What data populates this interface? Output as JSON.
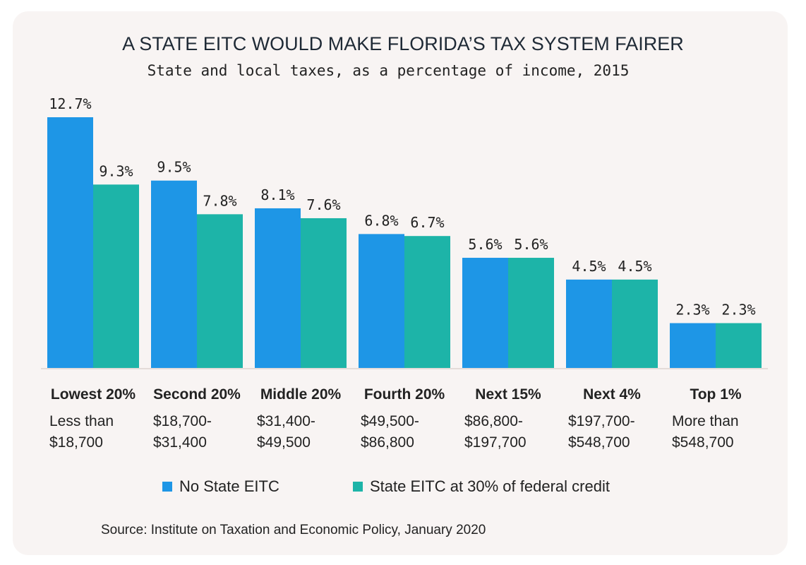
{
  "header": {
    "title": "A STATE EITC WOULD MAKE FLORIDA’S TAX SYSTEM FAIRER",
    "subtitle": "State and local taxes, as a percentage of income, 2015"
  },
  "source": "Source: Institute on Taxation and Economic Policy, January 2020",
  "chart_data": {
    "type": "bar",
    "title": "A STATE EITC WOULD MAKE FLORIDA’S TAX SYSTEM FAIRER",
    "subtitle": "State and local taxes, as a percentage of income, 2015",
    "categories": [
      "Lowest 20%",
      "Second 20%",
      "Middle 20%",
      "Fourth 20%",
      "Next 15%",
      "Next 4%",
      "Top 1%"
    ],
    "income_ranges": [
      [
        "Less than",
        "$18,700"
      ],
      [
        "$18,700-",
        "$31,400"
      ],
      [
        "$31,400-",
        "$49,500"
      ],
      [
        "$49,500-",
        "$86,800"
      ],
      [
        "$86,800-",
        "$197,700"
      ],
      [
        "$197,700-",
        "$548,700"
      ],
      [
        "More than",
        "$548,700"
      ]
    ],
    "series": [
      {
        "name": "No State EITC",
        "color": "#1e96e6",
        "values": [
          12.7,
          9.5,
          8.1,
          6.8,
          5.6,
          4.5,
          2.3
        ],
        "labels": [
          "12.7%",
          "9.5%",
          "8.1%",
          "6.8%",
          "5.6%",
          "4.5%",
          "2.3%"
        ]
      },
      {
        "name": "State EITC at 30% of federal credit",
        "color": "#1db4a8",
        "values": [
          9.3,
          7.8,
          7.6,
          6.7,
          5.6,
          4.5,
          2.3
        ],
        "labels": [
          "9.3%",
          "7.8%",
          "7.6%",
          "6.7%",
          "5.6%",
          "4.5%",
          "2.3%"
        ]
      }
    ],
    "ylim": [
      0,
      12.7
    ],
    "grid": false,
    "legend": "bottom"
  }
}
